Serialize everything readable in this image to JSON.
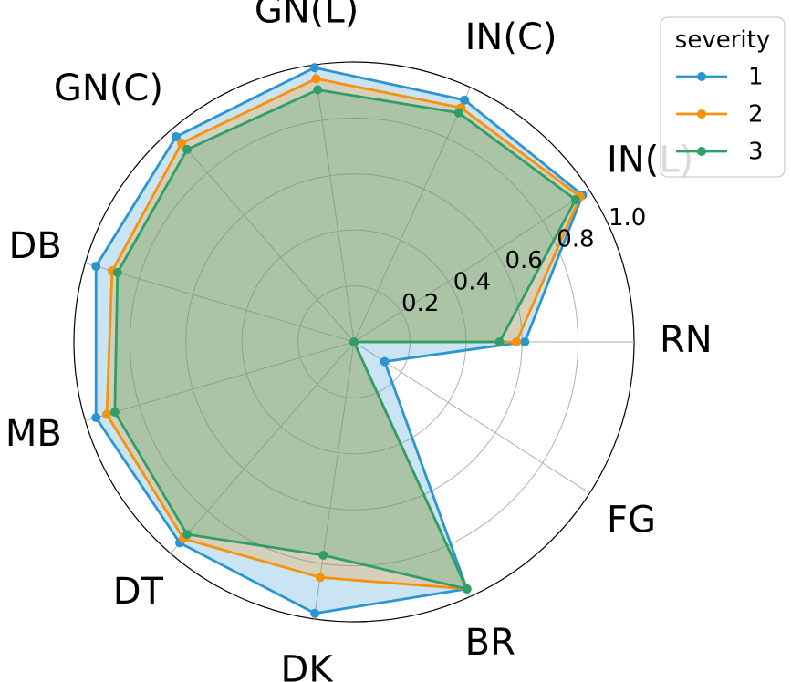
{
  "chart_data": {
    "type": "radar",
    "categories": [
      "RN",
      "IN(L)",
      "IN(C)",
      "GN(L)",
      "GN(C)",
      "DB",
      "MB",
      "DT",
      "DK",
      "BR",
      "FG"
    ],
    "rlim": [
      0,
      1.0
    ],
    "r_ticks": [
      "0.2",
      "0.4",
      "0.6",
      "0.8",
      "1.0"
    ],
    "r_tick_values": [
      0.2,
      0.4,
      0.6,
      0.8,
      1.0
    ],
    "grid": true,
    "legend": {
      "title": "severity",
      "placement": "top-right"
    },
    "series": [
      {
        "name": "1",
        "color": "#2b95d0",
        "values": [
          0.61,
          0.97,
          0.95,
          0.99,
          0.97,
          0.96,
          0.96,
          0.95,
          0.98,
          0.97,
          0.13
        ]
      },
      {
        "name": "2",
        "color": "#f7920f",
        "values": [
          0.58,
          0.96,
          0.92,
          0.95,
          0.94,
          0.9,
          0.92,
          0.93,
          0.85,
          0.97,
          0.0
        ]
      },
      {
        "name": "3",
        "color": "#2f9e6a",
        "values": [
          0.52,
          0.94,
          0.9,
          0.91,
          0.91,
          0.88,
          0.89,
          0.91,
          0.77,
          0.97,
          0.0
        ]
      }
    ]
  }
}
